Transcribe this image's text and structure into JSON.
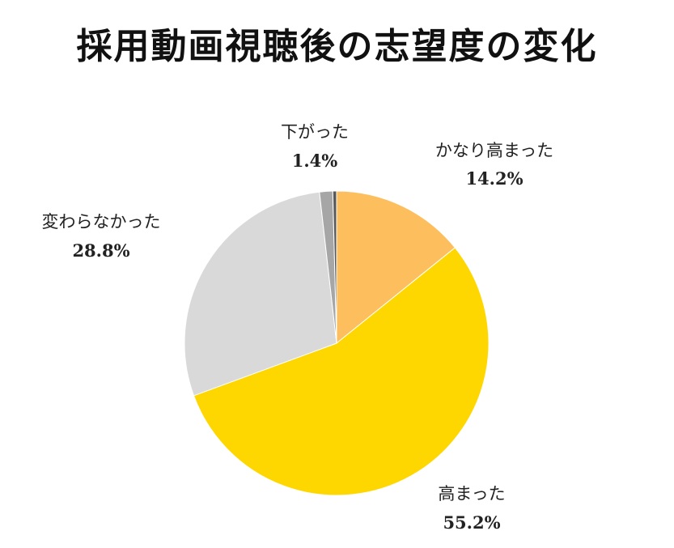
{
  "chart_data": {
    "type": "pie",
    "title": "採用動画視聴後の志望度の変化",
    "start_angle_deg": 0,
    "direction": "clockwise",
    "slices": [
      {
        "label": "かなり高まった",
        "value": 14.2,
        "display": "14.2%",
        "color": "#FDBF5E"
      },
      {
        "label": "高まった",
        "value": 55.2,
        "display": "55.2%",
        "color": "#FFD700"
      },
      {
        "label": "変わらなかった",
        "value": 28.8,
        "display": "28.8%",
        "color": "#D9D9D9"
      },
      {
        "label": "下がった",
        "value": 1.4,
        "display": "1.4%",
        "color": "#A6A6A6"
      },
      {
        "label": "",
        "value": 0.4,
        "display": "",
        "color": "#595959"
      }
    ]
  }
}
